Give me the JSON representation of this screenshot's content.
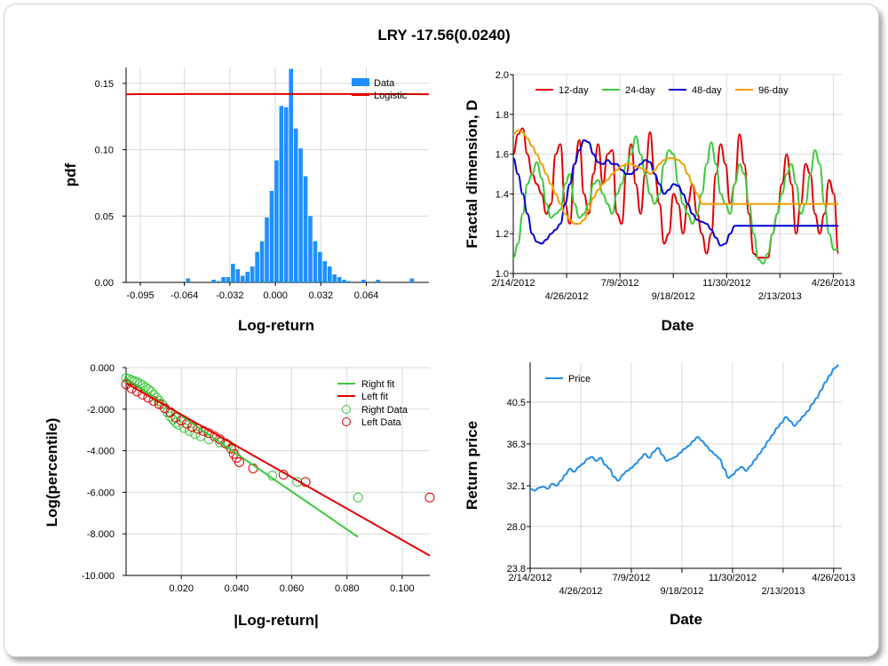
{
  "title": "LRY -17.56(0.0240)",
  "chart_data": [
    {
      "id": "pdf",
      "type": "bar",
      "xlabel": "Log-return",
      "ylabel": "pdf",
      "xlim": [
        -0.105,
        0.108
      ],
      "ylim": [
        0,
        0.162
      ],
      "xticks": [
        -0.095,
        -0.064,
        -0.032,
        0.0,
        0.032,
        0.064
      ],
      "xtick_labels": [
        "-0.095",
        "-0.064",
        "-0.032",
        "0.000",
        "0.032",
        "0.064"
      ],
      "yticks": [
        0,
        0.05,
        0.1,
        0.15
      ],
      "ytick_labels": [
        "0.00",
        "0.05",
        "0.10",
        "0.15"
      ],
      "legend": [
        "Data",
        "Logistic"
      ],
      "colors": {
        "bars": "#1e90ff",
        "fit": "#e00000"
      },
      "bin_width": 0.0034,
      "bins": [
        {
          "x": -0.0614,
          "v": 0.003
        },
        {
          "x": -0.0434,
          "v": 0.002
        },
        {
          "x": -0.04,
          "v": 0.001
        },
        {
          "x": -0.0366,
          "v": 0.004
        },
        {
          "x": -0.0332,
          "v": 0.004
        },
        {
          "x": -0.0298,
          "v": 0.014
        },
        {
          "x": -0.0264,
          "v": 0.01
        },
        {
          "x": -0.023,
          "v": 0.005
        },
        {
          "x": -0.0196,
          "v": 0.008
        },
        {
          "x": -0.0162,
          "v": 0.012
        },
        {
          "x": -0.0128,
          "v": 0.023
        },
        {
          "x": -0.0094,
          "v": 0.031
        },
        {
          "x": -0.006,
          "v": 0.049
        },
        {
          "x": -0.0026,
          "v": 0.069
        },
        {
          "x": 0.0008,
          "v": 0.092
        },
        {
          "x": 0.0042,
          "v": 0.133
        },
        {
          "x": 0.0076,
          "v": 0.132
        },
        {
          "x": 0.011,
          "v": 0.161
        },
        {
          "x": 0.0144,
          "v": 0.116
        },
        {
          "x": 0.0178,
          "v": 0.101
        },
        {
          "x": 0.0212,
          "v": 0.08
        },
        {
          "x": 0.0246,
          "v": 0.05
        },
        {
          "x": 0.028,
          "v": 0.031
        },
        {
          "x": 0.0314,
          "v": 0.023
        },
        {
          "x": 0.0348,
          "v": 0.016
        },
        {
          "x": 0.0382,
          "v": 0.012
        },
        {
          "x": 0.0416,
          "v": 0.006
        },
        {
          "x": 0.045,
          "v": 0.004
        },
        {
          "x": 0.0484,
          "v": 0.002
        },
        {
          "x": 0.0518,
          "v": 0.001
        },
        {
          "x": 0.062,
          "v": 0.002
        },
        {
          "x": 0.0722,
          "v": 0.002
        },
        {
          "x": 0.096,
          "v": 0.003
        }
      ],
      "fit_mu": 0.0015,
      "fit_peak": 0.142
    },
    {
      "id": "fractal",
      "type": "line",
      "xlabel": "Date",
      "ylabel": "Fractal dimension, D",
      "ylim": [
        1.0,
        2.0
      ],
      "yticks": [
        1.0,
        1.2,
        1.4,
        1.6,
        1.8,
        2.0
      ],
      "ytick_labels": [
        "1.0",
        "1.2",
        "1.4",
        "1.6",
        "1.8",
        "2.0"
      ],
      "xticks_top": [
        "2/14/2012",
        "7/9/2012",
        "11/30/2012",
        "4/26/2013"
      ],
      "xticks_bottom": [
        "4/26/2012",
        "9/18/2012",
        "2/13/2013"
      ],
      "xtick_pos": [
        0,
        0.1623,
        0.3247,
        0.487,
        0.6494,
        0.8117,
        0.974
      ],
      "series": [
        {
          "name": "12-day",
          "color": "#e00000",
          "values": [
            1.6,
            1.7,
            1.73,
            1.6,
            1.5,
            1.45,
            1.4,
            1.3,
            1.35,
            1.6,
            1.65,
            1.35,
            1.25,
            1.55,
            1.67,
            1.4,
            1.3,
            1.5,
            1.65,
            1.45,
            1.6,
            1.62,
            1.3,
            1.25,
            1.5,
            1.65,
            1.45,
            1.3,
            1.5,
            1.71,
            1.5,
            1.35,
            1.15,
            1.2,
            1.4,
            1.35,
            1.2,
            1.35,
            1.45,
            1.3,
            1.2,
            1.1,
            1.2,
            1.5,
            1.65,
            1.55,
            1.35,
            1.45,
            1.7,
            1.55,
            1.3,
            1.1,
            1.08,
            1.08,
            1.08,
            1.2,
            1.3,
            1.45,
            1.6,
            1.45,
            1.2,
            1.35,
            1.55,
            1.5,
            1.3,
            1.2,
            1.3,
            1.47,
            1.4,
            1.1
          ]
        },
        {
          "name": "24-day",
          "color": "#3cc83c",
          "values": [
            1.08,
            1.15,
            1.3,
            1.45,
            1.5,
            1.56,
            1.48,
            1.35,
            1.28,
            1.3,
            1.32,
            1.45,
            1.5,
            1.35,
            1.28,
            1.3,
            1.35,
            1.45,
            1.47,
            1.4,
            1.35,
            1.3,
            1.4,
            1.45,
            1.55,
            1.6,
            1.69,
            1.6,
            1.5,
            1.4,
            1.35,
            1.4,
            1.55,
            1.62,
            1.6,
            1.45,
            1.35,
            1.3,
            1.25,
            1.3,
            1.4,
            1.55,
            1.66,
            1.55,
            1.4,
            1.35,
            1.3,
            1.45,
            1.55,
            1.5,
            1.35,
            1.2,
            1.07,
            1.05,
            1.1,
            1.2,
            1.3,
            1.4,
            1.5,
            1.55,
            1.45,
            1.3,
            1.35,
            1.5,
            1.62,
            1.55,
            1.35,
            1.2,
            1.12,
            1.12
          ]
        },
        {
          "name": "48-day",
          "color": "#0000d0",
          "values": [
            1.58,
            1.5,
            1.4,
            1.3,
            1.2,
            1.16,
            1.15,
            1.17,
            1.2,
            1.22,
            1.25,
            1.35,
            1.45,
            1.55,
            1.62,
            1.67,
            1.66,
            1.6,
            1.56,
            1.55,
            1.57,
            1.55,
            1.55,
            1.52,
            1.5,
            1.5,
            1.52,
            1.55,
            1.57,
            1.56,
            1.5,
            1.45,
            1.4,
            1.42,
            1.45,
            1.44,
            1.4,
            1.35,
            1.3,
            1.27,
            1.26,
            1.25,
            1.22,
            1.18,
            1.14,
            1.15,
            1.2,
            1.24,
            1.24,
            1.24,
            1.24,
            1.24,
            1.24,
            1.24,
            1.24,
            1.24,
            1.24,
            1.24,
            1.24,
            1.24,
            1.24,
            1.24,
            1.24,
            1.24,
            1.24,
            1.24,
            1.24,
            1.24,
            1.24,
            1.24
          ]
        },
        {
          "name": "96-day",
          "color": "#f0a000",
          "values": [
            1.7,
            1.72,
            1.71,
            1.68,
            1.64,
            1.6,
            1.55,
            1.5,
            1.45,
            1.4,
            1.35,
            1.3,
            1.27,
            1.25,
            1.25,
            1.27,
            1.32,
            1.38,
            1.42,
            1.45,
            1.47,
            1.5,
            1.52,
            1.54,
            1.55,
            1.55,
            1.54,
            1.53,
            1.52,
            1.5,
            1.52,
            1.55,
            1.57,
            1.58,
            1.58,
            1.57,
            1.55,
            1.5,
            1.45,
            1.4,
            1.35,
            1.35,
            1.35,
            1.35,
            1.35,
            1.35,
            1.35,
            1.35,
            1.35,
            1.35,
            1.35,
            1.35,
            1.35,
            1.35,
            1.35,
            1.35,
            1.35,
            1.35,
            1.35,
            1.35,
            1.35,
            1.35,
            1.35,
            1.35,
            1.35,
            1.35,
            1.35,
            1.35,
            1.35,
            1.35
          ]
        }
      ]
    },
    {
      "id": "tail",
      "type": "scatter",
      "xlabel": "|Log-return|",
      "ylabel": "Log(percentile)",
      "xlim": [
        0,
        0.11
      ],
      "ylim": [
        -10,
        0
      ],
      "xticks": [
        0.02,
        0.04,
        0.06,
        0.08,
        0.1
      ],
      "xtick_labels": [
        "0.020",
        "0.040",
        "0.060",
        "0.080",
        "0.100"
      ],
      "yticks": [
        0,
        -2,
        -4,
        -6,
        -8,
        -10
      ],
      "ytick_labels": [
        "0.000",
        "-2.000",
        "-4.000",
        "-6.000",
        "-8.000",
        "-10.000"
      ],
      "legend": [
        "Right fit",
        "Left fit",
        "Right Data",
        "Left Data"
      ],
      "colors": {
        "right": "#3cc83c",
        "left": "#e00000"
      },
      "right_fit": [
        [
          0.0,
          -0.5
        ],
        [
          0.084,
          -8.15
        ]
      ],
      "left_fit": [
        [
          0.0,
          -0.75
        ],
        [
          0.11,
          -9.05
        ]
      ],
      "right_points": [
        [
          0.0,
          -0.5
        ],
        [
          0.001,
          -0.55
        ],
        [
          0.002,
          -0.6
        ],
        [
          0.003,
          -0.65
        ],
        [
          0.004,
          -0.7
        ],
        [
          0.005,
          -0.78
        ],
        [
          0.006,
          -0.85
        ],
        [
          0.007,
          -0.95
        ],
        [
          0.008,
          -1.05
        ],
        [
          0.009,
          -1.15
        ],
        [
          0.01,
          -1.3
        ],
        [
          0.011,
          -1.45
        ],
        [
          0.012,
          -1.6
        ],
        [
          0.013,
          -1.75
        ],
        [
          0.014,
          -1.95
        ],
        [
          0.015,
          -2.15
        ],
        [
          0.016,
          -2.35
        ],
        [
          0.017,
          -2.5
        ],
        [
          0.018,
          -2.65
        ],
        [
          0.019,
          -2.75
        ],
        [
          0.021,
          -2.9
        ],
        [
          0.023,
          -3.05
        ],
        [
          0.025,
          -3.2
        ],
        [
          0.027,
          -3.3
        ],
        [
          0.03,
          -3.45
        ],
        [
          0.034,
          -3.6
        ],
        [
          0.037,
          -3.7
        ],
        [
          0.039,
          -3.9
        ],
        [
          0.053,
          -5.2
        ],
        [
          0.062,
          -5.5
        ],
        [
          0.084,
          -6.25
        ]
      ],
      "left_points": [
        [
          0.0,
          -0.8
        ],
        [
          0.002,
          -1.0
        ],
        [
          0.004,
          -1.15
        ],
        [
          0.006,
          -1.3
        ],
        [
          0.008,
          -1.45
        ],
        [
          0.01,
          -1.6
        ],
        [
          0.012,
          -1.75
        ],
        [
          0.014,
          -1.95
        ],
        [
          0.016,
          -2.15
        ],
        [
          0.018,
          -2.4
        ],
        [
          0.02,
          -2.55
        ],
        [
          0.022,
          -2.7
        ],
        [
          0.024,
          -2.85
        ],
        [
          0.026,
          -2.95
        ],
        [
          0.028,
          -3.05
        ],
        [
          0.03,
          -3.15
        ],
        [
          0.032,
          -3.3
        ],
        [
          0.034,
          -3.45
        ],
        [
          0.036,
          -3.65
        ],
        [
          0.038,
          -3.9
        ],
        [
          0.039,
          -4.15
        ],
        [
          0.04,
          -4.35
        ],
        [
          0.041,
          -4.55
        ],
        [
          0.046,
          -4.85
        ],
        [
          0.057,
          -5.15
        ],
        [
          0.065,
          -5.5
        ],
        [
          0.11,
          -6.25
        ]
      ]
    },
    {
      "id": "price",
      "type": "line",
      "xlabel": "Date",
      "ylabel": "Return price",
      "ylim": [
        23.8,
        44.5
      ],
      "yticks": [
        23.8,
        28.0,
        32.1,
        36.3,
        40.5
      ],
      "ytick_labels": [
        "23.8",
        "28.0",
        "32.1",
        "36.3",
        "40.5"
      ],
      "xticks_top": [
        "2/14/2012",
        "7/9/2012",
        "11/30/2012",
        "4/26/2013"
      ],
      "xticks_bottom": [
        "4/26/2012",
        "9/18/2012",
        "2/13/2013"
      ],
      "xtick_pos": [
        0,
        0.1623,
        0.3247,
        0.487,
        0.6494,
        0.8117,
        0.974
      ],
      "series": [
        {
          "name": "Price",
          "color": "#1e8ce6",
          "values": [
            31.8,
            31.6,
            31.9,
            32.0,
            31.8,
            32.3,
            32.1,
            32.6,
            33.2,
            33.8,
            33.5,
            34.0,
            34.3,
            34.8,
            35.0,
            34.6,
            34.9,
            34.2,
            33.8,
            33.0,
            32.6,
            33.2,
            33.6,
            33.9,
            34.3,
            34.8,
            35.3,
            34.9,
            35.5,
            35.9,
            35.2,
            34.6,
            34.8,
            35.0,
            35.4,
            35.8,
            36.1,
            36.6,
            37.0,
            36.6,
            36.1,
            35.6,
            35.2,
            34.8,
            33.8,
            32.9,
            33.2,
            33.7,
            34.0,
            33.6,
            34.1,
            34.7,
            35.3,
            35.9,
            36.6,
            37.2,
            37.9,
            38.4,
            39.0,
            38.6,
            38.1,
            38.6,
            39.1,
            39.6,
            40.3,
            40.9,
            41.7,
            42.5,
            43.2,
            43.9,
            44.2
          ]
        }
      ]
    }
  ]
}
